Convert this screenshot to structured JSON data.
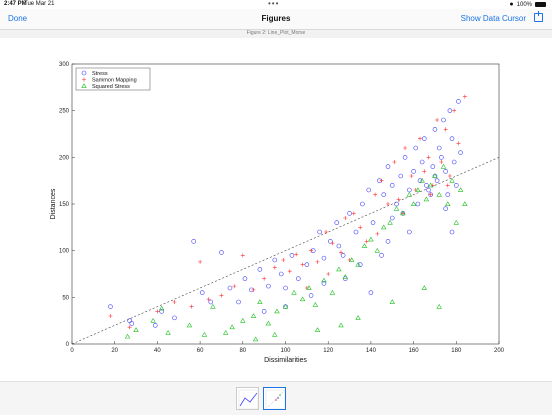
{
  "status_bar": {
    "time": "2:47 PM",
    "date": "Tue Mar 21",
    "battery": "100%",
    "more": "•••"
  },
  "nav": {
    "done_label": "Done",
    "title": "Figures",
    "cursor_label": "Show Data Cursor",
    "share_icon": "share-icon"
  },
  "figure_title": "Figure 2: Line_Plot_Morse",
  "colors": {
    "stress": "#4040ff",
    "sammon": "#ff3030",
    "squared": "#20c020",
    "accent": "#1a73e8"
  },
  "chart_data": {
    "type": "scatter",
    "xlabel": "Dissimilarities",
    "ylabel": "Distances",
    "xlim": [
      0,
      200
    ],
    "ylim": [
      0,
      300
    ],
    "xticks": [
      0,
      20,
      40,
      60,
      80,
      100,
      120,
      140,
      160,
      180,
      200
    ],
    "yticks": [
      0,
      50,
      100,
      150,
      200,
      250,
      300
    ],
    "grid": false,
    "legend_position": "top-left",
    "reference_line": {
      "x": [
        0,
        200
      ],
      "y": [
        0,
        200
      ],
      "style": "dashed"
    },
    "series": [
      {
        "name": "Stress",
        "marker": "circle",
        "color": "#4040ff",
        "x": [
          18,
          27,
          28,
          39,
          42,
          48,
          57,
          61,
          65,
          70,
          74,
          78,
          81,
          84,
          88,
          92,
          95,
          98,
          100,
          103,
          106,
          110,
          113,
          116,
          118,
          121,
          124,
          127,
          130,
          133,
          136,
          139,
          141,
          144,
          146,
          148,
          150,
          152,
          154,
          156,
          158,
          160,
          161,
          163,
          164,
          165,
          166,
          168,
          169,
          170,
          171,
          172,
          173,
          174,
          175,
          176,
          177,
          178,
          179,
          180,
          181,
          182,
          118,
          125,
          140,
          150,
          162,
          170,
          175,
          158,
          145,
          135,
          128,
          112,
          100,
          90,
          148,
          155,
          167,
          178
        ],
        "y": [
          40,
          25,
          22,
          20,
          35,
          28,
          110,
          55,
          45,
          98,
          60,
          45,
          70,
          58,
          80,
          62,
          90,
          75,
          60,
          95,
          70,
          85,
          100,
          120,
          92,
          110,
          130,
          95,
          140,
          120,
          150,
          165,
          130,
          175,
          160,
          190,
          170,
          150,
          180,
          200,
          165,
          185,
          210,
          175,
          195,
          220,
          170,
          160,
          190,
          230,
          175,
          210,
          200,
          240,
          185,
          160,
          250,
          220,
          195,
          170,
          260,
          205,
          65,
          105,
          55,
          135,
          150,
          180,
          145,
          120,
          95,
          85,
          70,
          52,
          40,
          35,
          110,
          140,
          165,
          120
        ]
      },
      {
        "name": "Sammon Mapping",
        "marker": "plus",
        "color": "#ff3030",
        "x": [
          18,
          27,
          40,
          48,
          56,
          60,
          64,
          70,
          76,
          80,
          85,
          90,
          95,
          99,
          102,
          105,
          108,
          112,
          115,
          119,
          122,
          126,
          128,
          132,
          135,
          138,
          142,
          145,
          148,
          151,
          153,
          156,
          159,
          161,
          163,
          165,
          167,
          169,
          171,
          173,
          175,
          177,
          179,
          181,
          184,
          110,
          120,
          130,
          143,
          155,
          168,
          176
        ],
        "y": [
          30,
          18,
          35,
          45,
          40,
          88,
          48,
          52,
          62,
          95,
          58,
          70,
          82,
          90,
          78,
          96,
          85,
          100,
          88,
          120,
          108,
          98,
          135,
          140,
          125,
          110,
          160,
          175,
          150,
          195,
          155,
          210,
          180,
          165,
          220,
          185,
          200,
          170,
          240,
          195,
          230,
          180,
          250,
          215,
          265,
          60,
          75,
          90,
          118,
          140,
          160,
          170
        ]
      },
      {
        "name": "Squared Stress",
        "marker": "triangle",
        "color": "#20c020",
        "x": [
          26,
          30,
          38,
          42,
          45,
          55,
          62,
          66,
          72,
          75,
          80,
          85,
          88,
          92,
          96,
          100,
          104,
          108,
          111,
          114,
          118,
          122,
          125,
          128,
          131,
          134,
          137,
          140,
          143,
          146,
          149,
          152,
          155,
          158,
          160,
          162,
          164,
          166,
          168,
          170,
          172,
          174,
          176,
          178,
          180,
          182,
          184,
          86,
          95,
          115,
          126,
          134,
          150,
          165,
          172
        ],
        "y": [
          8,
          15,
          25,
          38,
          12,
          20,
          10,
          40,
          12,
          18,
          25,
          30,
          45,
          22,
          35,
          40,
          55,
          48,
          60,
          42,
          68,
          55,
          80,
          72,
          90,
          85,
          105,
          112,
          100,
          125,
          130,
          145,
          140,
          160,
          150,
          165,
          175,
          155,
          170,
          180,
          160,
          190,
          150,
          175,
          130,
          165,
          150,
          5,
          10,
          15,
          20,
          28,
          45,
          60,
          40
        ]
      }
    ]
  }
}
